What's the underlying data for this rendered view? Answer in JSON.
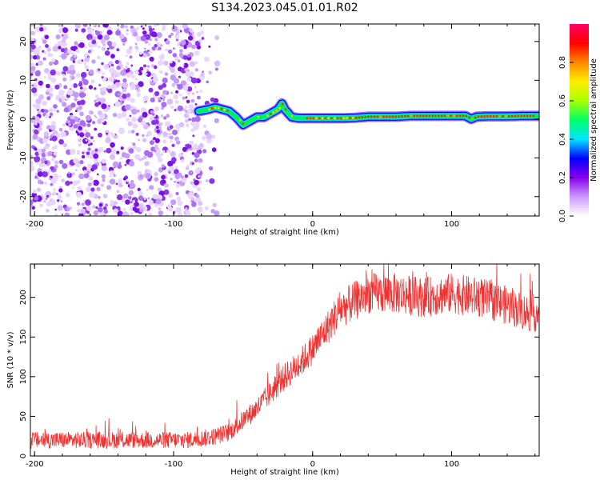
{
  "title": "S134.2023.045.01.01.R02",
  "chart_data": [
    {
      "type": "heatmap",
      "name": "spectrogram",
      "xlabel": "Height of straight line (km)",
      "ylabel": "Frequency (Hz)",
      "xlim": [
        -203,
        163
      ],
      "ylim": [
        -25,
        24.5
      ],
      "xticks": [
        -200,
        -100,
        0,
        100
      ],
      "xtick_labels": [
        "-200",
        "-100",
        "0",
        "100"
      ],
      "yticks": [
        -20,
        -10,
        0,
        10,
        20
      ],
      "ytick_labels": [
        "-20",
        "-10",
        "0",
        "10",
        "20"
      ],
      "noise_region_x": [
        -203,
        -80
      ],
      "signal_track": {
        "x": [
          -82,
          -75,
          -70,
          -65,
          -60,
          -55,
          -50,
          -45,
          -40,
          -35,
          -30,
          -25,
          -22,
          -20,
          -15,
          -10,
          -5,
          0,
          10,
          20,
          30,
          40,
          50,
          60,
          70,
          80,
          90,
          100,
          110,
          114,
          118,
          125,
          140,
          150,
          163
        ],
        "freq_hz": [
          2,
          2.5,
          3,
          2.5,
          2,
          0.5,
          -1.5,
          -0.5,
          0.5,
          0.5,
          1.5,
          2.5,
          4,
          2.5,
          0.5,
          0.2,
          0.2,
          0.2,
          0.2,
          0.2,
          0.3,
          0.6,
          0.6,
          0.6,
          0.8,
          0.8,
          0.8,
          0.8,
          0.8,
          0,
          0.6,
          0.7,
          0.7,
          0.8,
          0.8
        ]
      },
      "colorbar": {
        "label": "Normalized spectral amplitude",
        "range": [
          0,
          1
        ],
        "ticks": [
          0,
          0.2,
          0.4,
          0.6,
          0.8
        ],
        "tick_labels": [
          "0.0",
          "0.2",
          "0.4",
          "0.6",
          "0.8"
        ],
        "colors": [
          "#ffffff",
          "#cc99ff",
          "#8800ee",
          "#0000ff",
          "#00e5ff",
          "#00ff66",
          "#aaff00",
          "#ffee00",
          "#ff8800",
          "#ff0000",
          "#ff0066"
        ]
      }
    },
    {
      "type": "line",
      "name": "snr",
      "xlabel": "Height of straight line (km)",
      "ylabel": "SNR (10 * v/v)",
      "xlim": [
        -203,
        163
      ],
      "ylim": [
        0,
        242
      ],
      "xticks": [
        -200,
        -100,
        0,
        100
      ],
      "xtick_labels": [
        "-200",
        "-100",
        "0",
        "100"
      ],
      "yticks": [
        0,
        50,
        100,
        150,
        200
      ],
      "ytick_labels": [
        "0",
        "50",
        "100",
        "150",
        "200"
      ],
      "color": "#ee3333",
      "trend": {
        "x": [
          -203,
          -160,
          -120,
          -90,
          -80,
          -70,
          -60,
          -50,
          -40,
          -30,
          -20,
          -10,
          0,
          10,
          20,
          40,
          60,
          80,
          100,
          120,
          140,
          155,
          163
        ],
        "y": [
          20,
          20,
          20,
          20,
          22,
          25,
          30,
          45,
          60,
          80,
          100,
          115,
          135,
          160,
          185,
          205,
          205,
          200,
          205,
          200,
          190,
          180,
          180
        ]
      },
      "noise_amplitude": 18
    }
  ]
}
